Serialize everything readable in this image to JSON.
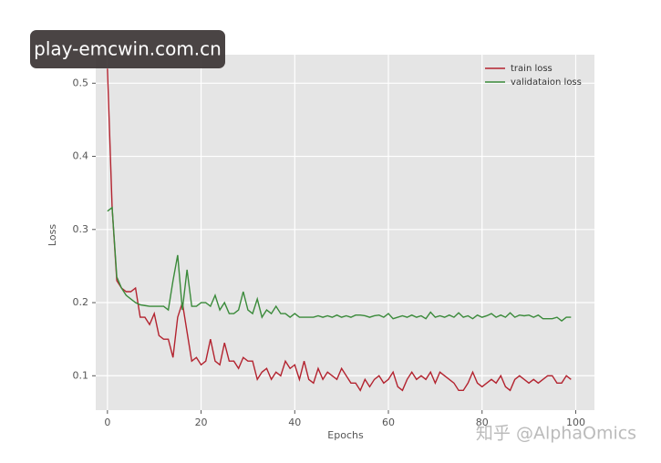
{
  "chart_data": {
    "type": "line",
    "x_label": "Epochs",
    "y_label": "Loss",
    "x": [
      0,
      1,
      2,
      3,
      4,
      5,
      6,
      7,
      8,
      9,
      10,
      11,
      12,
      13,
      14,
      15,
      16,
      17,
      18,
      19,
      20,
      21,
      22,
      23,
      24,
      25,
      26,
      27,
      28,
      29,
      30,
      31,
      32,
      33,
      34,
      35,
      36,
      37,
      38,
      39,
      40,
      41,
      42,
      43,
      44,
      45,
      46,
      47,
      48,
      49,
      50,
      51,
      52,
      53,
      54,
      55,
      56,
      57,
      58,
      59,
      60,
      61,
      62,
      63,
      64,
      65,
      66,
      67,
      68,
      69,
      70,
      71,
      72,
      73,
      74,
      75,
      76,
      77,
      78,
      79,
      80,
      81,
      82,
      83,
      84,
      85,
      86,
      87,
      88,
      89,
      90,
      91,
      92,
      93,
      94,
      95,
      96,
      97,
      98,
      99
    ],
    "series": [
      {
        "name": "train loss",
        "color": "#b3232f",
        "values": [
          0.52,
          0.33,
          0.23,
          0.22,
          0.215,
          0.215,
          0.22,
          0.18,
          0.18,
          0.17,
          0.185,
          0.155,
          0.15,
          0.15,
          0.125,
          0.18,
          0.2,
          0.16,
          0.12,
          0.125,
          0.115,
          0.12,
          0.15,
          0.12,
          0.115,
          0.145,
          0.12,
          0.12,
          0.11,
          0.125,
          0.12,
          0.12,
          0.095,
          0.105,
          0.11,
          0.095,
          0.105,
          0.1,
          0.12,
          0.11,
          0.115,
          0.095,
          0.12,
          0.095,
          0.09,
          0.11,
          0.095,
          0.105,
          0.1,
          0.095,
          0.11,
          0.1,
          0.09,
          0.09,
          0.08,
          0.095,
          0.085,
          0.095,
          0.1,
          0.09,
          0.095,
          0.105,
          0.085,
          0.08,
          0.095,
          0.105,
          0.095,
          0.1,
          0.095,
          0.105,
          0.09,
          0.105,
          0.1,
          0.095,
          0.09,
          0.08,
          0.08,
          0.09,
          0.105,
          0.09,
          0.085,
          0.09,
          0.095,
          0.09,
          0.1,
          0.085,
          0.08,
          0.095,
          0.1,
          0.095,
          0.09,
          0.095,
          0.09,
          0.095,
          0.1,
          0.1,
          0.09,
          0.09,
          0.1,
          0.095
        ]
      },
      {
        "name": "validataion loss",
        "color": "#3a8a3a",
        "values": [
          0.325,
          0.33,
          0.235,
          0.22,
          0.21,
          0.205,
          0.2,
          0.197,
          0.196,
          0.195,
          0.195,
          0.195,
          0.195,
          0.19,
          0.23,
          0.265,
          0.19,
          0.245,
          0.195,
          0.195,
          0.2,
          0.2,
          0.195,
          0.21,
          0.19,
          0.2,
          0.185,
          0.185,
          0.19,
          0.215,
          0.19,
          0.185,
          0.205,
          0.18,
          0.19,
          0.185,
          0.195,
          0.185,
          0.185,
          0.18,
          0.185,
          0.18,
          0.18,
          0.18,
          0.18,
          0.182,
          0.18,
          0.182,
          0.18,
          0.183,
          0.18,
          0.182,
          0.18,
          0.183,
          0.183,
          0.182,
          0.18,
          0.182,
          0.183,
          0.18,
          0.185,
          0.178,
          0.18,
          0.182,
          0.18,
          0.183,
          0.18,
          0.182,
          0.178,
          0.187,
          0.18,
          0.182,
          0.18,
          0.183,
          0.18,
          0.186,
          0.18,
          0.182,
          0.178,
          0.183,
          0.18,
          0.182,
          0.185,
          0.18,
          0.183,
          0.18,
          0.186,
          0.18,
          0.183,
          0.182,
          0.183,
          0.18,
          0.183,
          0.178,
          0.178,
          0.178,
          0.18,
          0.175,
          0.18,
          0.18
        ]
      }
    ],
    "xlim": [
      -2.5,
      104
    ],
    "ylim": [
      0.053,
      0.539
    ],
    "xticks": [
      0,
      20,
      40,
      60,
      80,
      100
    ],
    "yticks": [
      0.1,
      0.2,
      0.3,
      0.4,
      0.5
    ],
    "grid": true,
    "legend": "upper right"
  },
  "watermark": {
    "site": "play-emcwin.com.cn",
    "credit": "知乎 @AlphaOmics"
  }
}
